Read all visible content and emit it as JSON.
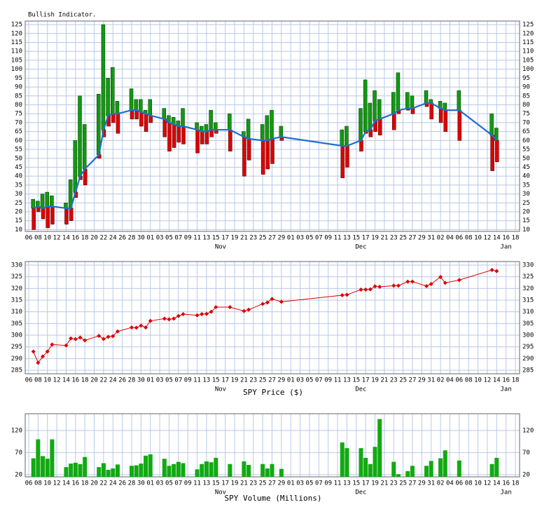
{
  "chart_data": {
    "x": [
      "10-07",
      "10-08",
      "10-09",
      "10-10",
      "10-11",
      "10-14",
      "10-15",
      "10-16",
      "10-17",
      "10-18",
      "10-21",
      "10-22",
      "10-23",
      "10-24",
      "10-25",
      "10-28",
      "10-29",
      "10-30",
      "10-31",
      "11-01",
      "11-04",
      "11-05",
      "11-06",
      "11-07",
      "11-08",
      "11-11",
      "11-12",
      "11-13",
      "11-14",
      "11-15",
      "11-18",
      "11-21",
      "11-22",
      "11-25",
      "11-26",
      "11-27",
      "11-29",
      "12-12",
      "12-13",
      "12-16",
      "12-17",
      "12-18",
      "12-19",
      "12-20",
      "12-23",
      "12-24",
      "12-26",
      "12-27",
      "12-30",
      "12-31",
      "01-02",
      "01-03",
      "01-06",
      "01-13",
      "01-14"
    ],
    "xticks": [
      {
        "value": "10-06",
        "label": "06"
      },
      {
        "value": "10-08",
        "label": "08"
      },
      {
        "value": "10-10",
        "label": "10"
      },
      {
        "value": "10-12",
        "label": "12"
      },
      {
        "value": "10-14",
        "label": "14"
      },
      {
        "value": "10-16",
        "label": "16"
      },
      {
        "value": "10-18",
        "label": "18"
      },
      {
        "value": "10-20",
        "label": "20"
      },
      {
        "value": "10-22",
        "label": "22"
      },
      {
        "value": "10-24",
        "label": "24"
      },
      {
        "value": "10-26",
        "label": "26"
      },
      {
        "value": "10-28",
        "label": "28"
      },
      {
        "value": "10-30",
        "label": "30"
      },
      {
        "value": "11-01",
        "label": "01"
      },
      {
        "value": "11-03",
        "label": "03"
      },
      {
        "value": "11-05",
        "label": "05"
      },
      {
        "value": "11-07",
        "label": "07"
      },
      {
        "value": "11-09",
        "label": "09"
      },
      {
        "value": "11-11",
        "label": "11"
      },
      {
        "value": "11-13",
        "label": "13"
      },
      {
        "value": "11-15",
        "label": "15"
      },
      {
        "value": "11-17",
        "label": "17"
      },
      {
        "value": "11-19",
        "label": "19"
      },
      {
        "value": "11-21",
        "label": "21"
      },
      {
        "value": "11-23",
        "label": "23"
      },
      {
        "value": "11-25",
        "label": "25"
      },
      {
        "value": "11-27",
        "label": "27"
      },
      {
        "value": "11-29",
        "label": "29"
      },
      {
        "value": "12-01",
        "label": "01"
      },
      {
        "value": "12-03",
        "label": "03"
      },
      {
        "value": "12-05",
        "label": "05"
      },
      {
        "value": "12-07",
        "label": "07"
      },
      {
        "value": "12-09",
        "label": "09"
      },
      {
        "value": "12-11",
        "label": "11"
      },
      {
        "value": "12-13",
        "label": "13"
      },
      {
        "value": "12-15",
        "label": "15"
      },
      {
        "value": "12-17",
        "label": "17"
      },
      {
        "value": "12-19",
        "label": "19"
      },
      {
        "value": "12-21",
        "label": "21"
      },
      {
        "value": "12-23",
        "label": "23"
      },
      {
        "value": "12-25",
        "label": "25"
      },
      {
        "value": "12-27",
        "label": "27"
      },
      {
        "value": "12-29",
        "label": "29"
      },
      {
        "value": "12-31",
        "label": "31"
      },
      {
        "value": "01-02",
        "label": "02"
      },
      {
        "value": "01-04",
        "label": "04"
      },
      {
        "value": "01-06",
        "label": "06"
      },
      {
        "value": "01-08",
        "label": "08"
      },
      {
        "value": "01-10",
        "label": "10"
      },
      {
        "value": "01-12",
        "label": "12"
      },
      {
        "value": "01-14",
        "label": "14"
      },
      {
        "value": "01-16",
        "label": "16"
      },
      {
        "value": "01-18",
        "label": "18"
      }
    ],
    "month_labels": [
      {
        "value": "11-16",
        "label": "Nov"
      },
      {
        "value": "12-16",
        "label": "Dec"
      },
      {
        "value": "01-16",
        "label": "Jan"
      }
    ],
    "grid": true,
    "panels": [
      {
        "type": "range-bar",
        "title": "Bullish Indicator.",
        "ylim": [
          9,
          127
        ],
        "yticks": [
          10,
          15,
          20,
          25,
          30,
          35,
          40,
          45,
          50,
          55,
          60,
          65,
          70,
          75,
          80,
          85,
          90,
          95,
          100,
          105,
          110,
          115,
          120,
          125
        ],
        "bar_top": {
          "color": "#119911",
          "values": [
            27,
            26,
            30,
            31,
            29,
            25,
            38,
            60,
            85,
            69,
            86,
            125,
            95,
            101,
            82,
            89,
            83,
            83,
            77,
            83,
            78,
            74,
            73,
            71,
            78,
            70,
            68,
            69,
            77,
            70,
            75,
            65,
            72,
            69,
            74,
            77,
            68,
            66,
            68,
            78,
            94,
            81,
            88,
            83,
            87,
            98,
            87,
            85,
            88,
            83,
            82,
            81,
            88,
            75,
            67
          ]
        },
        "bar_bottom": {
          "color": "#dd0000",
          "values": [
            10,
            20,
            16,
            11,
            13,
            13,
            15,
            28,
            38,
            35,
            50,
            62,
            68,
            70,
            64,
            72,
            72,
            68,
            65,
            70,
            62,
            54,
            56,
            59,
            58,
            53,
            58,
            58,
            62,
            64,
            54,
            40,
            49,
            41,
            44,
            47,
            60,
            39,
            45,
            54,
            64,
            62,
            65,
            63,
            66,
            75,
            77,
            75,
            79,
            72,
            70,
            65,
            60,
            43,
            48
          ]
        },
        "line": {
          "color": "#1f6fd0",
          "values": [
            22,
            23,
            22,
            23,
            23,
            22,
            22,
            31,
            40,
            44,
            52,
            66,
            74,
            75,
            75,
            77,
            77,
            76,
            75,
            74,
            72,
            70,
            69,
            68,
            68,
            66,
            65,
            65,
            66,
            66,
            66,
            62,
            61,
            60,
            60,
            61,
            62,
            57,
            57,
            60,
            65,
            66,
            71,
            72,
            75,
            77,
            78,
            78,
            81,
            81,
            78,
            77,
            77,
            63,
            60
          ]
        }
      },
      {
        "type": "line",
        "xlabel": "SPY Price ($)",
        "ylim": [
          283.5,
          331.5
        ],
        "yticks": [
          285,
          290,
          295,
          300,
          305,
          310,
          315,
          320,
          325,
          330
        ],
        "color": "#dd0000",
        "markers": true,
        "values": [
          293,
          288.2,
          290.9,
          293,
          296,
          295.6,
          298.6,
          298.3,
          299,
          297.8,
          299.7,
          298.4,
          299.3,
          299.6,
          301.6,
          303.3,
          303.2,
          304.1,
          303.3,
          306.1,
          307.1,
          306.8,
          307.1,
          308.2,
          309,
          308.5,
          309,
          309.1,
          310,
          312,
          312,
          310.3,
          310.9,
          313.4,
          314,
          315.5,
          314.3,
          317.1,
          317.3,
          319.5,
          319.5,
          319.6,
          320.9,
          320.7,
          321.2,
          321.2,
          322.9,
          322.9,
          321,
          321.9,
          324.9,
          322.4,
          323.6,
          327.9,
          327.4
        ]
      },
      {
        "type": "bar",
        "xlabel": "SPY Volume (Millions)",
        "ylim": [
          15,
          158
        ],
        "yticks": [
          20,
          70,
          120
        ],
        "color": "#11aa11",
        "values": [
          57,
          100,
          62,
          56,
          100,
          37,
          45,
          47,
          44,
          60,
          37,
          46,
          31,
          34,
          43,
          40,
          41,
          45,
          63,
          66,
          56,
          40,
          44,
          49,
          46,
          32,
          44,
          50,
          48,
          58,
          44,
          50,
          42,
          44,
          34,
          44,
          33,
          93,
          80,
          80,
          58,
          44,
          83,
          146,
          49,
          21,
          28,
          40,
          40,
          51,
          57,
          75,
          52,
          44,
          58
        ]
      }
    ]
  }
}
